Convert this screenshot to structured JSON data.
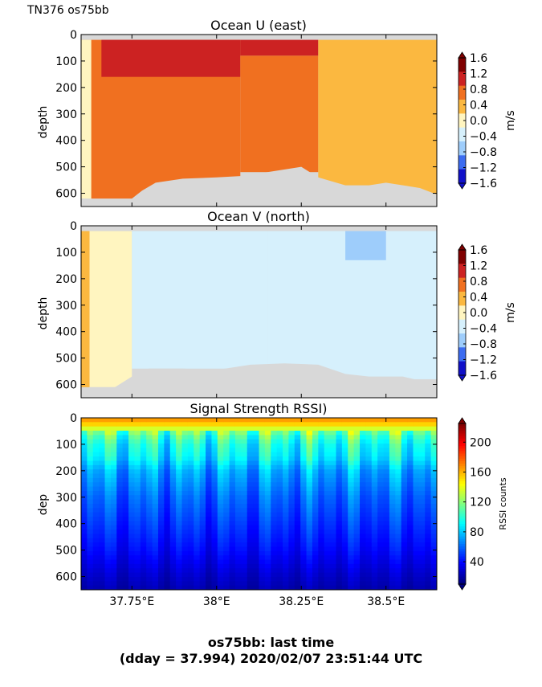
{
  "header": {
    "cruise_label": "TN376 os75bb"
  },
  "footer": {
    "line1": "os75bb: last time",
    "line2": "(dday = 37.994) 2020/02/07 23:51:44 UTC"
  },
  "colors": {
    "nodata": "#d8d8d8",
    "frame": "#000000"
  },
  "chart_data": [
    {
      "type": "heatmap",
      "title": "Ocean U (east)",
      "ylabel": "depth",
      "xlabel": "",
      "xlim": [
        37.6,
        38.65
      ],
      "ylim": [
        650,
        0
      ],
      "yticks": [
        0,
        100,
        200,
        300,
        400,
        500,
        600
      ],
      "xticks": [
        37.75,
        38.0,
        38.25,
        38.5
      ],
      "xtick_labels": [
        "37.75°E",
        "38°E",
        "38.25°E",
        "38.5°E"
      ],
      "show_xtick_labels": false,
      "colorbar": {
        "label": "m/s",
        "ticks": [
          "1.6",
          "1.2",
          "0.8",
          "0.4",
          "0.0",
          "−0.4",
          "−0.8",
          "−1.2",
          "−1.6"
        ],
        "levels": [
          "#7f0000",
          "#cc2222",
          "#f07020",
          "#fbb840",
          "#fff5c0",
          "#d6f0fc",
          "#9ecdfb",
          "#3c6cf0",
          "#1010c8"
        ]
      },
      "regions": [
        {
          "lon": [
            37.6,
            38.07
          ],
          "depth": [
            20,
            625
          ],
          "value": 0.6
        },
        {
          "lon": [
            37.66,
            38.07
          ],
          "depth": [
            20,
            160
          ],
          "value": 0.9
        },
        {
          "lon": [
            38.07,
            38.3
          ],
          "depth": [
            20,
            80
          ],
          "value": 0.9
        },
        {
          "lon": [
            38.07,
            38.3
          ],
          "depth": [
            80,
            520
          ],
          "value": 0.6
        },
        {
          "lon": [
            38.3,
            38.65
          ],
          "depth": [
            20,
            620
          ],
          "value": 0.2
        },
        {
          "lon": [
            37.6,
            37.63
          ],
          "depth": [
            20,
            625
          ],
          "value": -0.2
        }
      ],
      "bottom_depth": [
        [
          37.6,
          620
        ],
        [
          37.75,
          620
        ],
        [
          37.78,
          590
        ],
        [
          37.82,
          560
        ],
        [
          37.9,
          545
        ],
        [
          38.0,
          540
        ],
        [
          38.07,
          535
        ],
        [
          38.15,
          520
        ],
        [
          38.25,
          500
        ],
        [
          38.3,
          540
        ],
        [
          38.38,
          570
        ],
        [
          38.45,
          570
        ],
        [
          38.5,
          560
        ],
        [
          38.55,
          570
        ],
        [
          38.6,
          580
        ],
        [
          38.65,
          605
        ]
      ]
    },
    {
      "type": "heatmap",
      "title": "Ocean V (north)",
      "ylabel": "depth",
      "xlabel": "",
      "xlim": [
        37.6,
        38.65
      ],
      "ylim": [
        650,
        0
      ],
      "yticks": [
        0,
        100,
        200,
        300,
        400,
        500,
        600
      ],
      "xticks": [
        37.75,
        38.0,
        38.25,
        38.5
      ],
      "xtick_labels": [
        "37.75°E",
        "38°E",
        "38.25°E",
        "38.5°E"
      ],
      "show_xtick_labels": false,
      "colorbar": {
        "label": "m/s",
        "ticks": [
          "1.6",
          "1.2",
          "0.8",
          "0.4",
          "0.0",
          "−0.4",
          "−0.8",
          "−1.2",
          "−1.6"
        ],
        "levels": [
          "#7f0000",
          "#cc2222",
          "#f07020",
          "#fbb840",
          "#fff5c0",
          "#d6f0fc",
          "#9ecdfb",
          "#3c6cf0",
          "#1010c8"
        ]
      },
      "regions": [
        {
          "lon": [
            37.6,
            37.625
          ],
          "depth": [
            20,
            620
          ],
          "value": 0.2
        },
        {
          "lon": [
            37.625,
            37.75
          ],
          "depth": [
            20,
            610
          ],
          "value": -0.2
        },
        {
          "lon": [
            37.75,
            38.15
          ],
          "depth": [
            20,
            540
          ],
          "value": -0.6
        },
        {
          "lon": [
            38.15,
            38.65
          ],
          "depth": [
            20,
            580
          ],
          "value": -0.6
        },
        {
          "lon": [
            38.38,
            38.5
          ],
          "depth": [
            20,
            130
          ],
          "value": -1.0
        }
      ],
      "bottom_depth": [
        [
          37.6,
          610
        ],
        [
          37.7,
          610
        ],
        [
          37.75,
          570
        ],
        [
          37.8,
          540
        ],
        [
          37.9,
          540
        ],
        [
          38.0,
          545
        ],
        [
          38.1,
          525
        ],
        [
          38.2,
          520
        ],
        [
          38.3,
          525
        ],
        [
          38.38,
          560
        ],
        [
          38.45,
          570
        ],
        [
          38.55,
          570
        ],
        [
          38.65,
          600
        ]
      ]
    },
    {
      "type": "heatmap",
      "title": "Signal Strength RSSI)",
      "ylabel": "dep",
      "xlabel": "",
      "xlim": [
        37.6,
        38.65
      ],
      "ylim": [
        650,
        0
      ],
      "yticks": [
        0,
        100,
        200,
        300,
        400,
        500,
        600
      ],
      "xticks": [
        37.75,
        38.0,
        38.25,
        38.5
      ],
      "xtick_labels": [
        "37.75°E",
        "38°E",
        "38.25°E",
        "38.5°E"
      ],
      "show_xtick_labels": true,
      "colorbar": {
        "label": "RSSI counts",
        "ticks": [
          "200",
          "160",
          "120",
          "80",
          "40"
        ],
        "tick_values": [
          200,
          160,
          120,
          80,
          40
        ],
        "range": [
          10,
          225
        ]
      },
      "depth_profile": [
        [
          0,
          170
        ],
        [
          30,
          150
        ],
        [
          60,
          110
        ],
        [
          100,
          95
        ],
        [
          150,
          88
        ],
        [
          200,
          72
        ],
        [
          300,
          58
        ],
        [
          400,
          48
        ],
        [
          500,
          38
        ],
        [
          600,
          25
        ],
        [
          650,
          20
        ]
      ]
    }
  ]
}
